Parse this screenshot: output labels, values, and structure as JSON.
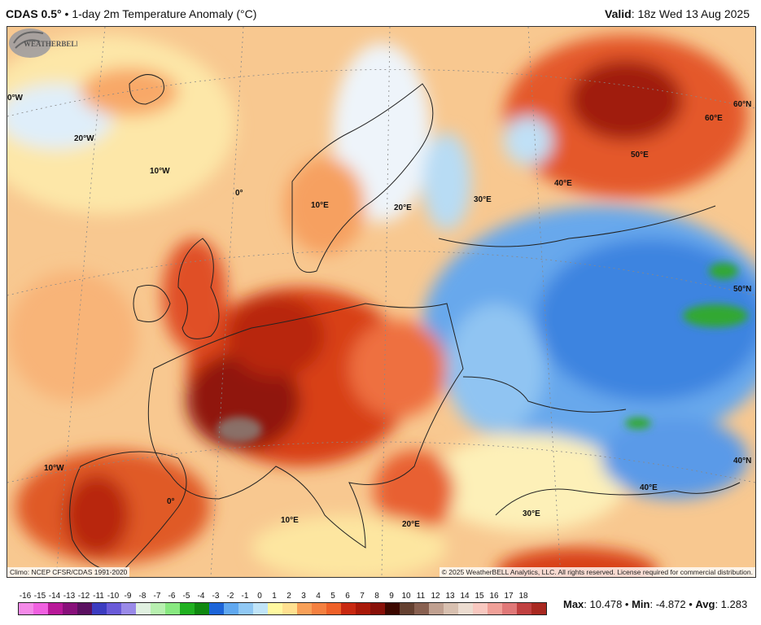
{
  "header": {
    "model": "CDAS 0.5°",
    "title": "1-day 2m Temperature Anomaly (°C)",
    "valid_label": "Valid",
    "valid_value": "18z Wed 13 Aug 2025"
  },
  "map": {
    "region": "Europe",
    "graticule_labels": [
      {
        "text": "0°W"
      },
      {
        "text": "20°W"
      },
      {
        "text": "10°W"
      },
      {
        "text": "0°"
      },
      {
        "text": "10°E"
      },
      {
        "text": "20°E"
      },
      {
        "text": "30°E"
      },
      {
        "text": "40°E"
      },
      {
        "text": "50°E"
      },
      {
        "text": "60°E"
      },
      {
        "text": "60°N"
      },
      {
        "text": "50°N"
      },
      {
        "text": "40°N"
      },
      {
        "text": "10°W"
      },
      {
        "text": "0°"
      },
      {
        "text": "10°E"
      },
      {
        "text": "20°E"
      },
      {
        "text": "30°E"
      },
      {
        "text": "40°E"
      }
    ],
    "climo_note": "Climo: NCEP CFSR/CDAS 1991-2020",
    "copyright": "© 2025 WeatherBELL Analytics, LLC. All rights reserved. License required for commercial distribution.",
    "logo_text": "WeatherBELL"
  },
  "colorbar": {
    "ticks": [
      "-16",
      "-15",
      "-14",
      "-13",
      "-12",
      "-11",
      "-10",
      "-9",
      "-8",
      "-7",
      "-6",
      "-5",
      "-4",
      "-3",
      "-2",
      "-1",
      "0",
      "1",
      "2",
      "3",
      "4",
      "5",
      "6",
      "7",
      "8",
      "9",
      "10",
      "11",
      "12",
      "13",
      "14",
      "15",
      "16",
      "17",
      "18"
    ],
    "colors": [
      "#f48ae8",
      "#f060e0",
      "#e020c8",
      "#b81898",
      "#88107a",
      "#5a1060",
      "#302498",
      "#3c3cc0",
      "#6a5ad8",
      "#9a8ae8",
      "#c8c0f0",
      "#e0f0e0",
      "#b8f0b0",
      "#88e880",
      "#50d850",
      "#20b020",
      "#108810",
      "#1c64d8",
      "#3c8ce8",
      "#60a8f0",
      "#90c8f4",
      "#c0e4f8",
      "#ffffff",
      "#fff8a0",
      "#ffe090",
      "#fcc070",
      "#f8a058",
      "#f48040",
      "#ee6028",
      "#e03c14",
      "#c82810",
      "#a81808",
      "#881008",
      "#600800",
      "#3c0800",
      "#644030",
      "#886050",
      "#a88070",
      "#c0a090",
      "#d8c0b0",
      "#ecdcd0",
      "#f8e8e0",
      "#f8c8c0",
      "#f0a098",
      "#e07878",
      "#d05858",
      "#c04040",
      "#a82820"
    ],
    "cell_count": 36
  },
  "stats": {
    "max_label": "Max",
    "max": "10.478",
    "min_label": "Min",
    "min": "-4.872",
    "avg_label": "Avg",
    "avg": "1.283"
  }
}
